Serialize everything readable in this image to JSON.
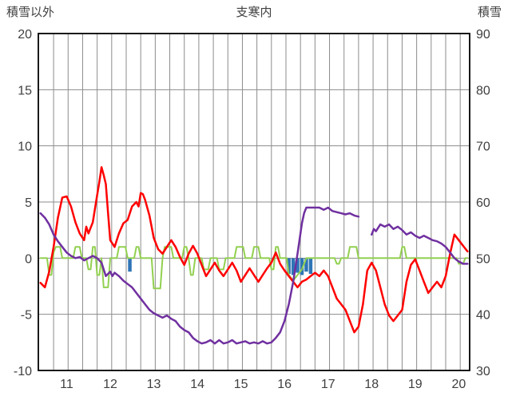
{
  "header": {
    "left": "積雪以外",
    "center": "支寒内",
    "right": "積雪"
  },
  "chart_data": {
    "type": "line",
    "title": "支寒内",
    "left_axis_title": "積雪以外",
    "right_axis_title": "積雪",
    "x_axis": {
      "min": 10.65,
      "max": 20.55,
      "labels": [
        11,
        12,
        13,
        14,
        15,
        16,
        17,
        18,
        19,
        20
      ],
      "grid_start": 11,
      "grid_step": 0.33333
    },
    "left_y_axis": {
      "min": -10,
      "max": 20,
      "ticks": [
        20,
        15,
        10,
        5,
        0,
        -5,
        -10
      ]
    },
    "right_y_axis": {
      "min": 30,
      "max": 90,
      "ticks": [
        90,
        80,
        70,
        60,
        50,
        40,
        30
      ]
    },
    "grid_color": "#8c8c8c",
    "border_color": "#000000",
    "series": [
      {
        "name": "blue-bars",
        "kind": "bar",
        "color": "#2E75B6",
        "axis": "left",
        "points": [
          [
            12.75,
            -1.2
          ],
          [
            16.4,
            -1.4
          ],
          [
            16.5,
            -1.5
          ],
          [
            16.6,
            -1.3
          ],
          [
            16.7,
            -1.5
          ],
          [
            16.8,
            -1.2
          ],
          [
            16.9,
            -1.4
          ]
        ]
      },
      {
        "name": "green-line",
        "kind": "line",
        "color": "#92D050",
        "width": 2,
        "axis": "left",
        "points": [
          [
            10.7,
            0
          ],
          [
            10.85,
            0
          ],
          [
            10.9,
            -1.5
          ],
          [
            10.95,
            -1.5
          ],
          [
            11.0,
            0.5
          ],
          [
            11.05,
            1.0
          ],
          [
            11.15,
            1.0
          ],
          [
            11.2,
            0
          ],
          [
            11.45,
            0
          ],
          [
            11.5,
            1.0
          ],
          [
            11.6,
            1.0
          ],
          [
            11.65,
            0
          ],
          [
            11.75,
            0
          ],
          [
            11.8,
            -1.0
          ],
          [
            11.85,
            -1.0
          ],
          [
            11.9,
            1.0
          ],
          [
            11.95,
            1.0
          ],
          [
            12.0,
            -1.5
          ],
          [
            12.05,
            -1.5
          ],
          [
            12.1,
            0
          ],
          [
            12.15,
            -2.6
          ],
          [
            12.25,
            -2.6
          ],
          [
            12.3,
            0
          ],
          [
            12.45,
            0
          ],
          [
            12.5,
            1.0
          ],
          [
            12.65,
            1.0
          ],
          [
            12.7,
            0
          ],
          [
            12.85,
            0
          ],
          [
            12.9,
            1.0
          ],
          [
            12.95,
            1.0
          ],
          [
            13.0,
            0
          ],
          [
            13.25,
            0
          ],
          [
            13.3,
            -2.7
          ],
          [
            13.45,
            -2.7
          ],
          [
            13.5,
            0
          ],
          [
            13.55,
            1.0
          ],
          [
            13.7,
            1.0
          ],
          [
            13.75,
            0
          ],
          [
            13.95,
            0
          ],
          [
            14.0,
            1.0
          ],
          [
            14.05,
            1.0
          ],
          [
            14.1,
            0
          ],
          [
            14.15,
            -1.5
          ],
          [
            14.2,
            -1.5
          ],
          [
            14.25,
            0
          ],
          [
            14.4,
            0
          ],
          [
            14.45,
            -1.0
          ],
          [
            14.55,
            -1.0
          ],
          [
            14.6,
            0
          ],
          [
            14.75,
            0
          ],
          [
            14.8,
            -1.0
          ],
          [
            14.9,
            -1.0
          ],
          [
            14.95,
            0
          ],
          [
            15.15,
            0
          ],
          [
            15.2,
            1.0
          ],
          [
            15.35,
            1.0
          ],
          [
            15.4,
            0
          ],
          [
            15.55,
            0
          ],
          [
            15.6,
            1.0
          ],
          [
            15.7,
            1.0
          ],
          [
            15.75,
            0
          ],
          [
            15.95,
            0
          ],
          [
            16.0,
            -1.0
          ],
          [
            16.05,
            -1.0
          ],
          [
            16.1,
            1.0
          ],
          [
            16.15,
            1.0
          ],
          [
            16.2,
            0
          ],
          [
            16.35,
            0
          ],
          [
            16.4,
            -1.5
          ],
          [
            16.5,
            -2.0
          ],
          [
            16.6,
            -1.5
          ],
          [
            16.7,
            -1.0
          ],
          [
            16.8,
            0
          ],
          [
            17.45,
            0
          ],
          [
            17.5,
            -0.5
          ],
          [
            17.55,
            -0.5
          ],
          [
            17.6,
            0
          ],
          [
            17.75,
            0
          ],
          [
            17.8,
            1.0
          ],
          [
            17.95,
            1.0
          ],
          [
            18.0,
            0
          ],
          [
            18.95,
            0
          ],
          [
            19.0,
            1.0
          ],
          [
            19.05,
            1.0
          ],
          [
            19.1,
            0
          ],
          [
            20.25,
            0
          ],
          [
            20.3,
            -0.5
          ],
          [
            20.4,
            -0.5
          ],
          [
            20.45,
            0
          ],
          [
            20.5,
            0
          ]
        ]
      },
      {
        "name": "red-line",
        "kind": "line",
        "color": "#FF0000",
        "width": 2.5,
        "axis": "left",
        "points": [
          [
            10.7,
            -2.2
          ],
          [
            10.8,
            -2.6
          ],
          [
            10.9,
            -1.2
          ],
          [
            11.0,
            1.0
          ],
          [
            11.1,
            3.6
          ],
          [
            11.2,
            5.4
          ],
          [
            11.3,
            5.5
          ],
          [
            11.4,
            4.6
          ],
          [
            11.5,
            3.2
          ],
          [
            11.6,
            2.2
          ],
          [
            11.7,
            1.6
          ],
          [
            11.75,
            2.8
          ],
          [
            11.8,
            2.2
          ],
          [
            11.9,
            3.2
          ],
          [
            12.0,
            5.6
          ],
          [
            12.05,
            6.8
          ],
          [
            12.1,
            8.1
          ],
          [
            12.15,
            7.4
          ],
          [
            12.2,
            6.6
          ],
          [
            12.25,
            4.0
          ],
          [
            12.3,
            1.6
          ],
          [
            12.4,
            1.0
          ],
          [
            12.5,
            2.2
          ],
          [
            12.6,
            3.1
          ],
          [
            12.7,
            3.4
          ],
          [
            12.8,
            4.6
          ],
          [
            12.9,
            5.0
          ],
          [
            12.95,
            4.6
          ],
          [
            13.0,
            5.8
          ],
          [
            13.05,
            5.7
          ],
          [
            13.1,
            5.2
          ],
          [
            13.2,
            3.8
          ],
          [
            13.3,
            1.8
          ],
          [
            13.4,
            0.8
          ],
          [
            13.5,
            0.4
          ],
          [
            13.6,
            1.0
          ],
          [
            13.7,
            1.6
          ],
          [
            13.8,
            1.0
          ],
          [
            13.9,
            0.1
          ],
          [
            14.0,
            -0.6
          ],
          [
            14.1,
            0.4
          ],
          [
            14.2,
            1.1
          ],
          [
            14.3,
            0.4
          ],
          [
            14.4,
            -0.6
          ],
          [
            14.5,
            -1.6
          ],
          [
            14.6,
            -1.0
          ],
          [
            14.7,
            -0.4
          ],
          [
            14.8,
            -1.1
          ],
          [
            14.9,
            -1.6
          ],
          [
            15.0,
            -1.0
          ],
          [
            15.1,
            -0.4
          ],
          [
            15.2,
            -1.1
          ],
          [
            15.3,
            -2.1
          ],
          [
            15.4,
            -1.5
          ],
          [
            15.5,
            -0.9
          ],
          [
            15.6,
            -1.5
          ],
          [
            15.7,
            -2.1
          ],
          [
            15.8,
            -1.5
          ],
          [
            15.9,
            -0.9
          ],
          [
            16.0,
            -0.4
          ],
          [
            16.1,
            0.5
          ],
          [
            16.2,
            -0.5
          ],
          [
            16.3,
            -1.1
          ],
          [
            16.4,
            -1.6
          ],
          [
            16.5,
            -2.1
          ],
          [
            16.6,
            -2.6
          ],
          [
            16.7,
            -2.1
          ],
          [
            16.8,
            -1.9
          ],
          [
            16.9,
            -1.6
          ],
          [
            17.0,
            -1.3
          ],
          [
            17.1,
            -1.6
          ],
          [
            17.2,
            -1.1
          ],
          [
            17.3,
            -1.6
          ],
          [
            17.4,
            -2.6
          ],
          [
            17.5,
            -3.6
          ],
          [
            17.6,
            -4.1
          ],
          [
            17.7,
            -4.6
          ],
          [
            17.8,
            -5.6
          ],
          [
            17.9,
            -6.6
          ],
          [
            18.0,
            -6.1
          ],
          [
            18.1,
            -4.1
          ],
          [
            18.2,
            -1.1
          ],
          [
            18.3,
            -0.4
          ],
          [
            18.4,
            -1.1
          ],
          [
            18.5,
            -2.6
          ],
          [
            18.6,
            -4.1
          ],
          [
            18.7,
            -5.1
          ],
          [
            18.8,
            -5.6
          ],
          [
            18.9,
            -5.1
          ],
          [
            19.0,
            -4.6
          ],
          [
            19.1,
            -2.1
          ],
          [
            19.2,
            -0.6
          ],
          [
            19.3,
            -0.1
          ],
          [
            19.4,
            -1.1
          ],
          [
            19.5,
            -2.1
          ],
          [
            19.6,
            -3.1
          ],
          [
            19.7,
            -2.6
          ],
          [
            19.8,
            -2.1
          ],
          [
            19.9,
            -2.6
          ],
          [
            20.0,
            -1.6
          ],
          [
            20.1,
            0.4
          ],
          [
            20.2,
            2.1
          ],
          [
            20.3,
            1.6
          ],
          [
            20.4,
            1.1
          ],
          [
            20.5,
            0.6
          ]
        ]
      },
      {
        "name": "purple-line",
        "kind": "line",
        "color": "#7030A0",
        "width": 2.5,
        "axis": "left",
        "points": [
          [
            10.7,
            4.0
          ],
          [
            10.8,
            3.6
          ],
          [
            10.9,
            3.0
          ],
          [
            11.0,
            2.1
          ],
          [
            11.1,
            1.5
          ],
          [
            11.2,
            1.0
          ],
          [
            11.3,
            0.5
          ],
          [
            11.4,
            0.2
          ],
          [
            11.5,
            0.0
          ],
          [
            11.6,
            0.1
          ],
          [
            11.7,
            -0.2
          ],
          [
            11.8,
            0.0
          ],
          [
            11.9,
            0.2
          ],
          [
            12.0,
            0.0
          ],
          [
            12.1,
            -0.4
          ],
          [
            12.2,
            -1.6
          ],
          [
            12.3,
            -1.2
          ],
          [
            12.35,
            -1.6
          ],
          [
            12.4,
            -1.3
          ],
          [
            12.5,
            -1.6
          ],
          [
            12.6,
            -2.0
          ],
          [
            12.7,
            -2.3
          ],
          [
            12.8,
            -2.6
          ],
          [
            12.9,
            -3.1
          ],
          [
            13.0,
            -3.6
          ],
          [
            13.1,
            -4.1
          ],
          [
            13.2,
            -4.6
          ],
          [
            13.3,
            -4.9
          ],
          [
            13.4,
            -5.1
          ],
          [
            13.5,
            -5.3
          ],
          [
            13.6,
            -5.1
          ],
          [
            13.7,
            -5.4
          ],
          [
            13.8,
            -5.6
          ],
          [
            13.9,
            -6.1
          ],
          [
            14.0,
            -6.4
          ],
          [
            14.1,
            -6.6
          ],
          [
            14.2,
            -7.1
          ],
          [
            14.3,
            -7.4
          ],
          [
            14.4,
            -7.6
          ],
          [
            14.5,
            -7.5
          ],
          [
            14.6,
            -7.3
          ],
          [
            14.7,
            -7.6
          ],
          [
            14.8,
            -7.3
          ],
          [
            14.9,
            -7.6
          ],
          [
            15.0,
            -7.5
          ],
          [
            15.1,
            -7.3
          ],
          [
            15.2,
            -7.6
          ],
          [
            15.3,
            -7.5
          ],
          [
            15.4,
            -7.4
          ],
          [
            15.5,
            -7.6
          ],
          [
            15.6,
            -7.5
          ],
          [
            15.7,
            -7.6
          ],
          [
            15.8,
            -7.4
          ],
          [
            15.9,
            -7.6
          ],
          [
            16.0,
            -7.5
          ],
          [
            16.1,
            -7.1
          ],
          [
            16.2,
            -6.6
          ],
          [
            16.3,
            -5.6
          ],
          [
            16.4,
            -4.1
          ],
          [
            16.5,
            -2.1
          ],
          [
            16.6,
            0.4
          ],
          [
            16.7,
            3.1
          ],
          [
            16.75,
            4.0
          ],
          [
            16.8,
            4.5
          ],
          [
            16.9,
            4.5
          ],
          [
            17.0,
            4.5
          ],
          [
            17.1,
            4.5
          ],
          [
            17.2,
            4.3
          ],
          [
            17.3,
            4.5
          ],
          [
            17.4,
            4.2
          ],
          [
            17.5,
            4.1
          ],
          [
            17.6,
            4.0
          ],
          [
            17.7,
            3.9
          ],
          [
            17.8,
            4.0
          ],
          [
            17.9,
            3.8
          ],
          [
            18.0,
            3.7
          ],
          [
            18.05,
            null
          ],
          [
            18.3,
            2.1
          ],
          [
            18.35,
            2.6
          ],
          [
            18.4,
            2.4
          ],
          [
            18.5,
            3.0
          ],
          [
            18.6,
            2.8
          ],
          [
            18.7,
            3.0
          ],
          [
            18.8,
            2.6
          ],
          [
            18.9,
            2.8
          ],
          [
            19.0,
            2.5
          ],
          [
            19.1,
            2.1
          ],
          [
            19.2,
            2.3
          ],
          [
            19.3,
            2.0
          ],
          [
            19.4,
            1.8
          ],
          [
            19.5,
            2.0
          ],
          [
            19.6,
            1.8
          ],
          [
            19.7,
            1.6
          ],
          [
            19.8,
            1.5
          ],
          [
            19.9,
            1.3
          ],
          [
            20.0,
            1.0
          ],
          [
            20.1,
            0.5
          ],
          [
            20.2,
            0.0
          ],
          [
            20.3,
            -0.3
          ],
          [
            20.4,
            -0.5
          ],
          [
            20.5,
            -0.5
          ]
        ]
      }
    ]
  }
}
